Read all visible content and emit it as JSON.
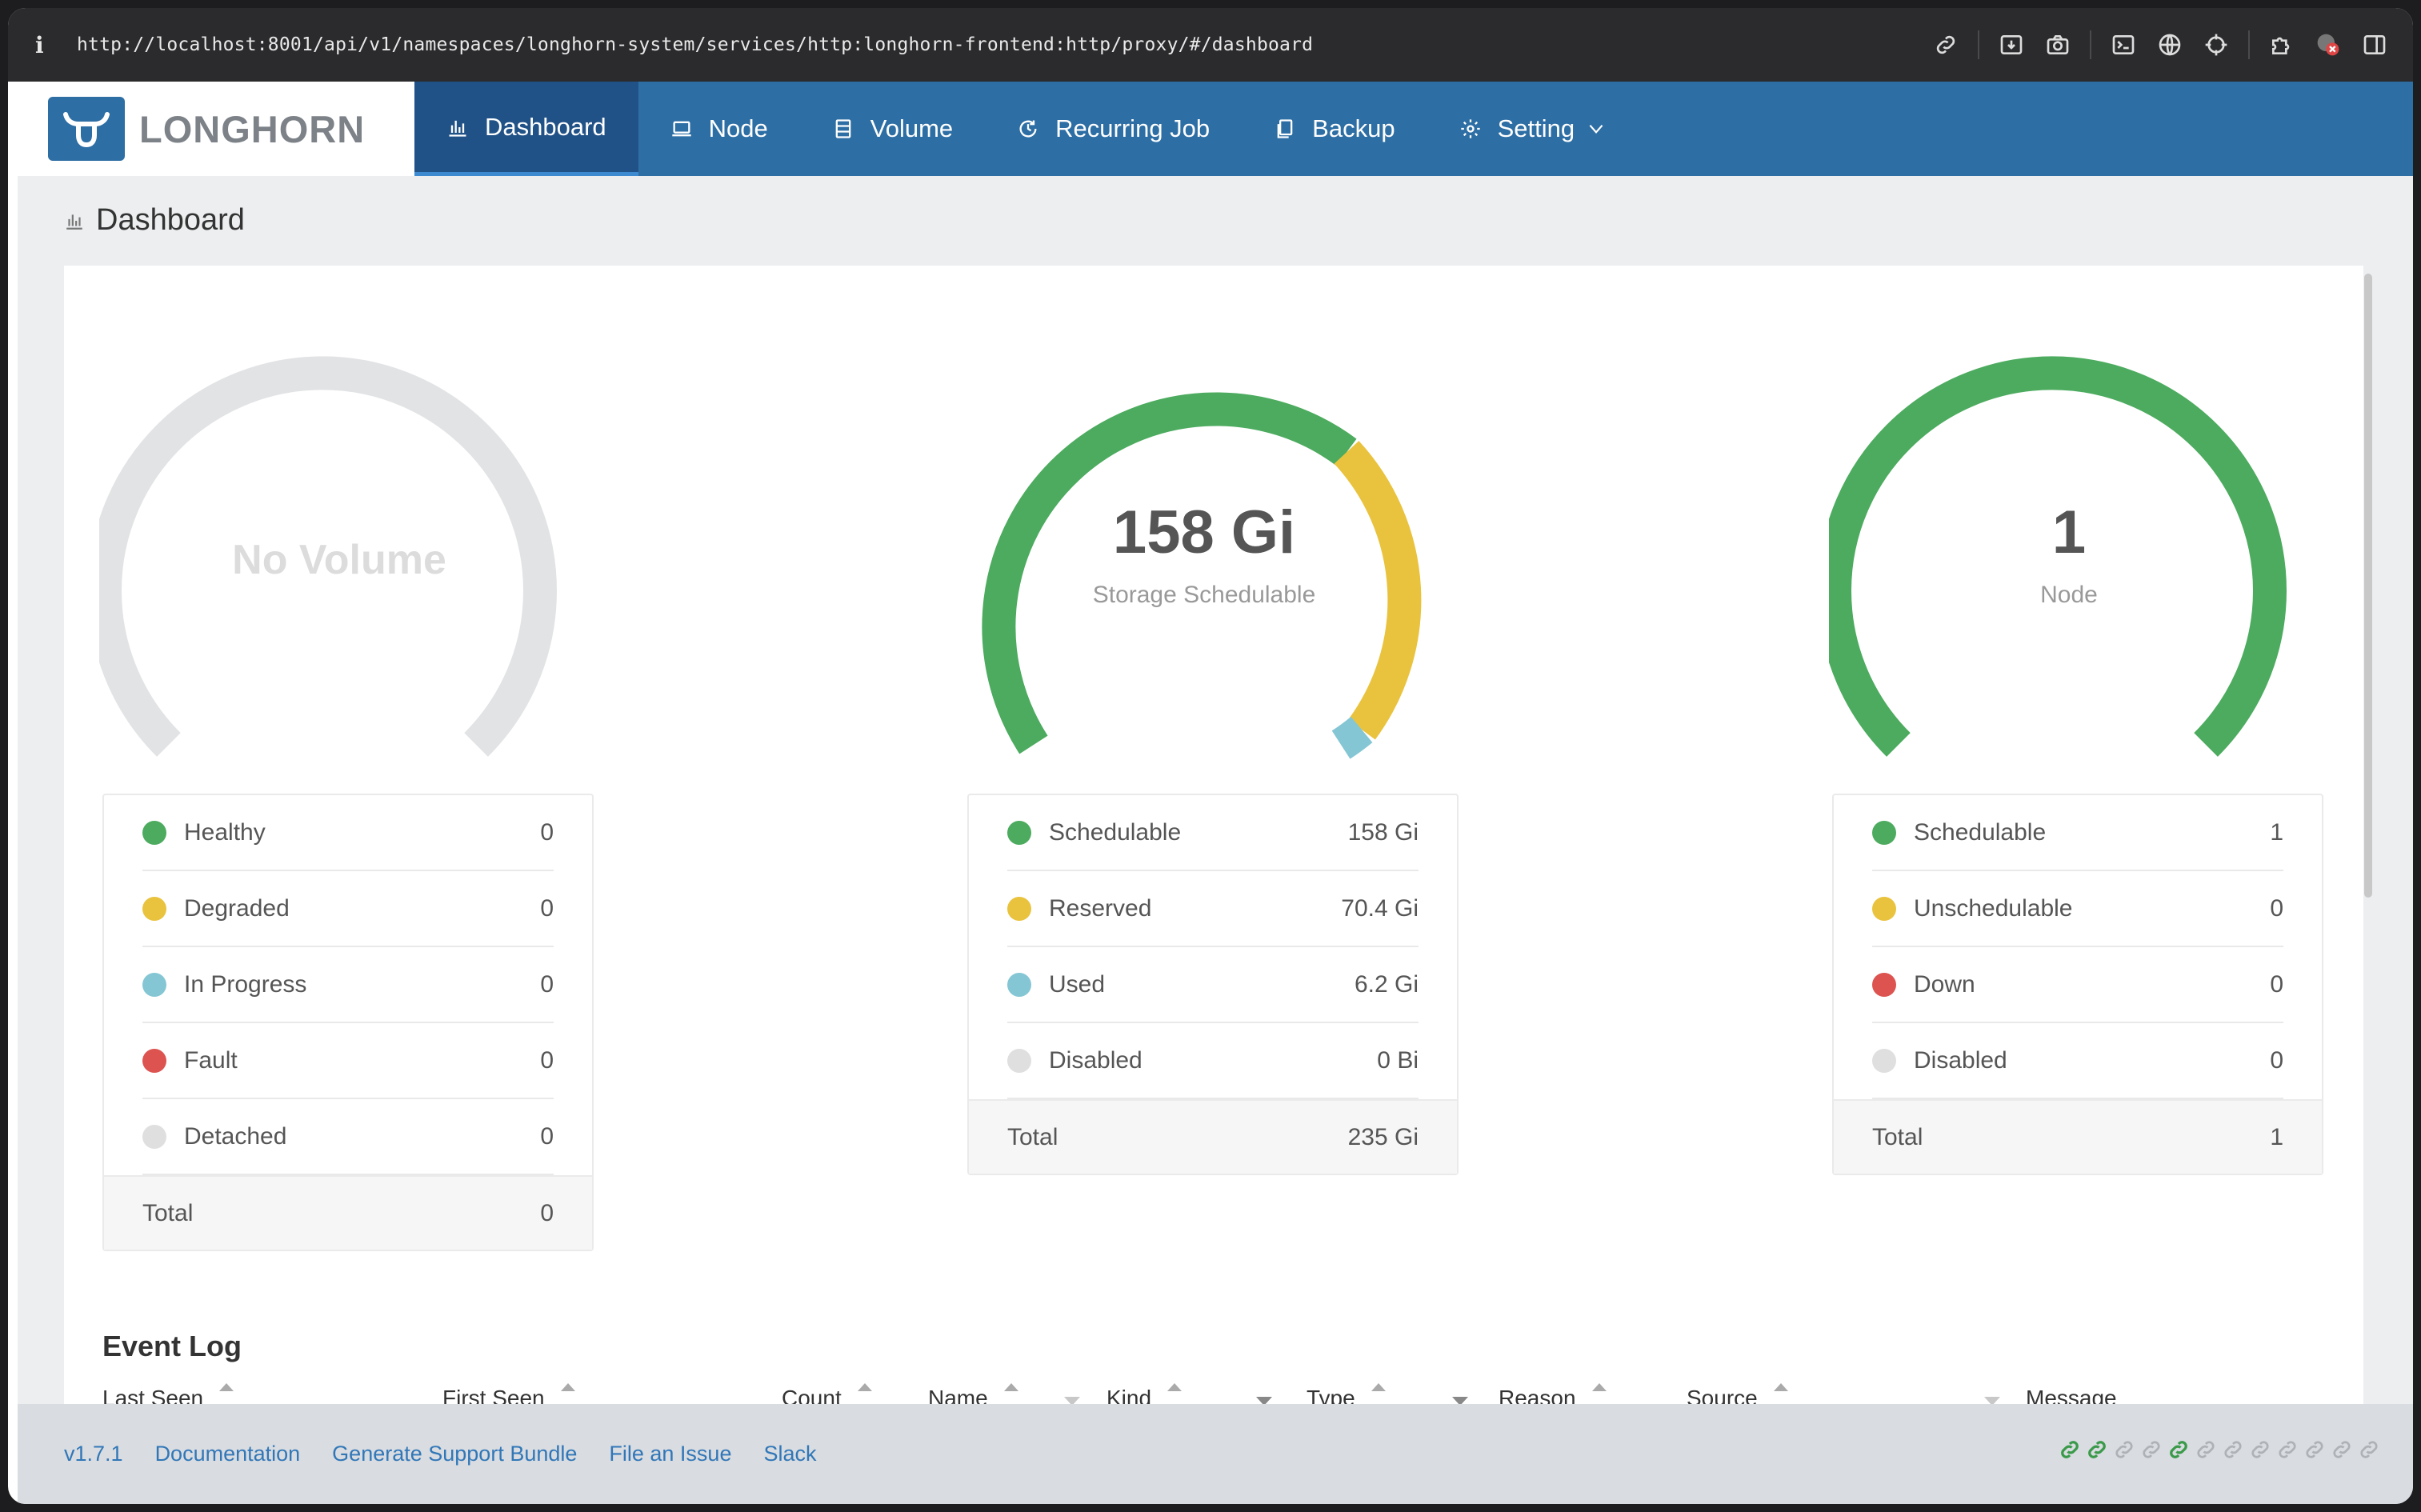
{
  "browser": {
    "info_glyph": "i",
    "url": "http://localhost:8001/api/v1/namespaces/longhorn-system/services/http:longhorn-frontend:http/proxy/#/dashboard",
    "toolbar_icons": [
      "link-icon",
      "download-icon",
      "camera-icon",
      "terminal-icon",
      "globe-icon",
      "crosshair-icon",
      "puzzle-icon",
      "extension-blocked-icon",
      "sidebar-icon"
    ]
  },
  "header": {
    "logo_text": "LONGHORN",
    "brand_color": "#2d6ea4",
    "nav": [
      {
        "label": "Dashboard",
        "icon": "bar-chart-icon",
        "active": true
      },
      {
        "label": "Node",
        "icon": "laptop-icon"
      },
      {
        "label": "Volume",
        "icon": "server-icon"
      },
      {
        "label": "Recurring Job",
        "icon": "clock-icon"
      },
      {
        "label": "Backup",
        "icon": "copy-icon"
      },
      {
        "label": "Setting",
        "icon": "gear-icon",
        "dropdown": true
      }
    ]
  },
  "page": {
    "title": "Dashboard"
  },
  "volume_panel": {
    "gauge_label": "No Volume",
    "rows": [
      {
        "label": "Healthy",
        "value": "0",
        "color": "#4cab5e"
      },
      {
        "label": "Degraded",
        "value": "0",
        "color": "#e9c33e"
      },
      {
        "label": "In Progress",
        "value": "0",
        "color": "#85c6d4"
      },
      {
        "label": "Fault",
        "value": "0",
        "color": "#dc5350"
      },
      {
        "label": "Detached",
        "value": "0",
        "color": "#dfdfdf"
      }
    ],
    "total_label": "Total",
    "total_value": "0"
  },
  "storage_panel": {
    "gauge_value": "158 Gi",
    "gauge_caption": "Storage Schedulable",
    "rows": [
      {
        "label": "Schedulable",
        "value": "158 Gi",
        "color": "#4cab5e"
      },
      {
        "label": "Reserved",
        "value": "70.4 Gi",
        "color": "#e9c33e"
      },
      {
        "label": "Used",
        "value": "6.2 Gi",
        "color": "#85c6d4"
      },
      {
        "label": "Disabled",
        "value": "0 Bi",
        "color": "#dfdfdf"
      }
    ],
    "total_label": "Total",
    "total_value": "235 Gi"
  },
  "node_panel": {
    "gauge_value": "1",
    "gauge_caption": "Node",
    "rows": [
      {
        "label": "Schedulable",
        "value": "1",
        "color": "#4cab5e"
      },
      {
        "label": "Unschedulable",
        "value": "0",
        "color": "#e9c33e"
      },
      {
        "label": "Down",
        "value": "0",
        "color": "#dc5350"
      },
      {
        "label": "Disabled",
        "value": "0",
        "color": "#dfdfdf"
      }
    ],
    "total_label": "Total",
    "total_value": "1"
  },
  "event_log": {
    "title": "Event Log",
    "columns": [
      "Last Seen",
      "First Seen",
      "Count",
      "Name",
      "Kind",
      "Type",
      "Reason",
      "Source",
      "Message"
    ]
  },
  "footer": {
    "version": "v1.7.1",
    "links": [
      "Documentation",
      "Generate Support Bundle",
      "File an Issue",
      "Slack"
    ],
    "connection_icons": [
      "link-icon-active",
      "link-icon-active",
      "link-icon",
      "link-icon",
      "link-icon-active",
      "link-icon",
      "link-icon",
      "link-icon",
      "link-icon",
      "link-icon",
      "link-icon",
      "link-icon"
    ]
  }
}
